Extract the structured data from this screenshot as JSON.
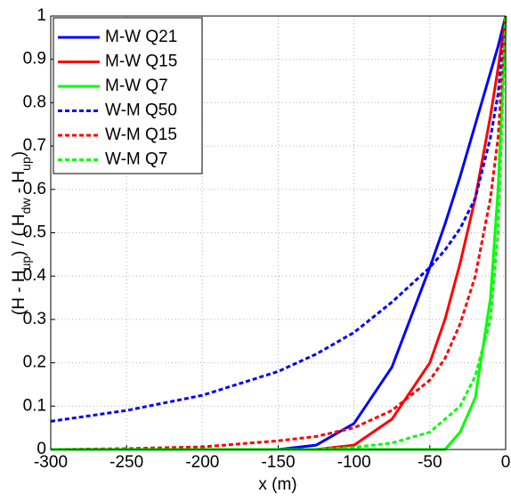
{
  "chart_data": {
    "type": "line",
    "x_label": "x (m)",
    "y_label": [
      "(H - H",
      "up",
      ") / ( H",
      "dw",
      " - H",
      "up",
      ")"
    ],
    "x": [
      -300,
      -250,
      -200,
      -150,
      -125,
      -100,
      -75,
      -50,
      -40,
      -30,
      -20,
      -10,
      -5,
      0
    ],
    "series": [
      {
        "name": "M-W Q21",
        "color": "#0000ff",
        "dash": "solid",
        "values": [
          0,
          0,
          0,
          0,
          0.01,
          0.06,
          0.19,
          0.42,
          0.52,
          0.63,
          0.75,
          0.87,
          0.93,
          1
        ]
      },
      {
        "name": "M-W Q15",
        "color": "#ff0000",
        "dash": "solid",
        "values": [
          0,
          0,
          0,
          0,
          0,
          0.01,
          0.07,
          0.2,
          0.3,
          0.43,
          0.58,
          0.77,
          0.88,
          1
        ]
      },
      {
        "name": "M-W Q7",
        "color": "#00ff00",
        "dash": "solid",
        "values": [
          0,
          0,
          0,
          0,
          0,
          0,
          0,
          0,
          0,
          0.04,
          0.12,
          0.35,
          0.6,
          1
        ]
      },
      {
        "name": "W-M Q50",
        "color": "#0000ff",
        "dash": "dashed",
        "values": [
          0.065,
          0.09,
          0.125,
          0.18,
          0.22,
          0.27,
          0.34,
          0.42,
          0.46,
          0.51,
          0.58,
          0.72,
          0.82,
          1
        ]
      },
      {
        "name": "W-M Q15",
        "color": "#ff0000",
        "dash": "dashed",
        "values": [
          0,
          0.002,
          0.006,
          0.02,
          0.03,
          0.05,
          0.09,
          0.16,
          0.21,
          0.29,
          0.4,
          0.58,
          0.72,
          1
        ]
      },
      {
        "name": "W-M Q7",
        "color": "#00ff00",
        "dash": "dashed",
        "values": [
          0,
          0,
          0,
          0,
          0,
          0.005,
          0.015,
          0.04,
          0.07,
          0.1,
          0.17,
          0.3,
          0.5,
          1
        ]
      }
    ],
    "xlim": [
      -300,
      0
    ],
    "xticks": [
      -300,
      -250,
      -200,
      -150,
      -100,
      -50,
      0
    ],
    "ylim": [
      0,
      1
    ],
    "yticks": [
      0,
      0.1,
      0.2,
      0.3,
      0.4,
      0.5,
      0.6,
      0.7,
      0.8,
      0.9,
      1
    ],
    "grid": true,
    "legend": "upper-left"
  }
}
